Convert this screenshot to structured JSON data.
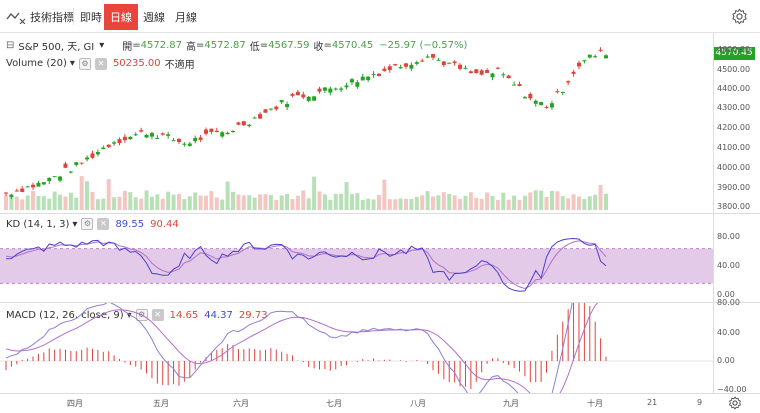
{
  "toolbar": {
    "indicators_label": "技術指標",
    "timeframes": [
      {
        "label": "即時",
        "active": false
      },
      {
        "label": "日線",
        "active": true
      },
      {
        "label": "週線",
        "active": false
      },
      {
        "label": "月線",
        "active": false
      }
    ],
    "settings_icon": "gear-icon"
  },
  "symbol": {
    "name": "S&P 500, 天, GI",
    "open_label": "開",
    "open": "4572.87",
    "high_label": "高",
    "high": "4572.87",
    "low_label": "低",
    "low": "4567.59",
    "close_label": "收",
    "close": "4570.45",
    "change": "−25.97 (−0.57%)",
    "last_price": "4570.45"
  },
  "volume": {
    "label": "Volume (20)",
    "value": "50235.00",
    "na": "不適用"
  },
  "kd": {
    "label": "KD (14, 1, 3)",
    "k": "89.55",
    "d": "90.44"
  },
  "macd": {
    "label": "MACD (12, 26, close, 9)",
    "hist": "14.65",
    "macd": "44.37",
    "signal": "29.73"
  },
  "price_axis": [
    "4600.00",
    "4500.00",
    "4400.00",
    "4300.00",
    "4200.00",
    "4100.00",
    "4000.00",
    "3900.00",
    "3800.00"
  ],
  "kd_axis": [
    "80.00",
    "40.00",
    "0.00"
  ],
  "macd_axis": [
    "80.00",
    "40.00",
    "0.00",
    "−40.00"
  ],
  "months": [
    "四月",
    "五月",
    "六月",
    "七月",
    "八月",
    "九月",
    "十月",
    "21",
    "9"
  ],
  "colors": {
    "up": "#26a326",
    "down": "#e0433c",
    "k_line": "#4b3fcf",
    "d_line": "#b36fc9",
    "kd_band": "#d8b8e0",
    "macd_hist": "#e0433c"
  }
}
